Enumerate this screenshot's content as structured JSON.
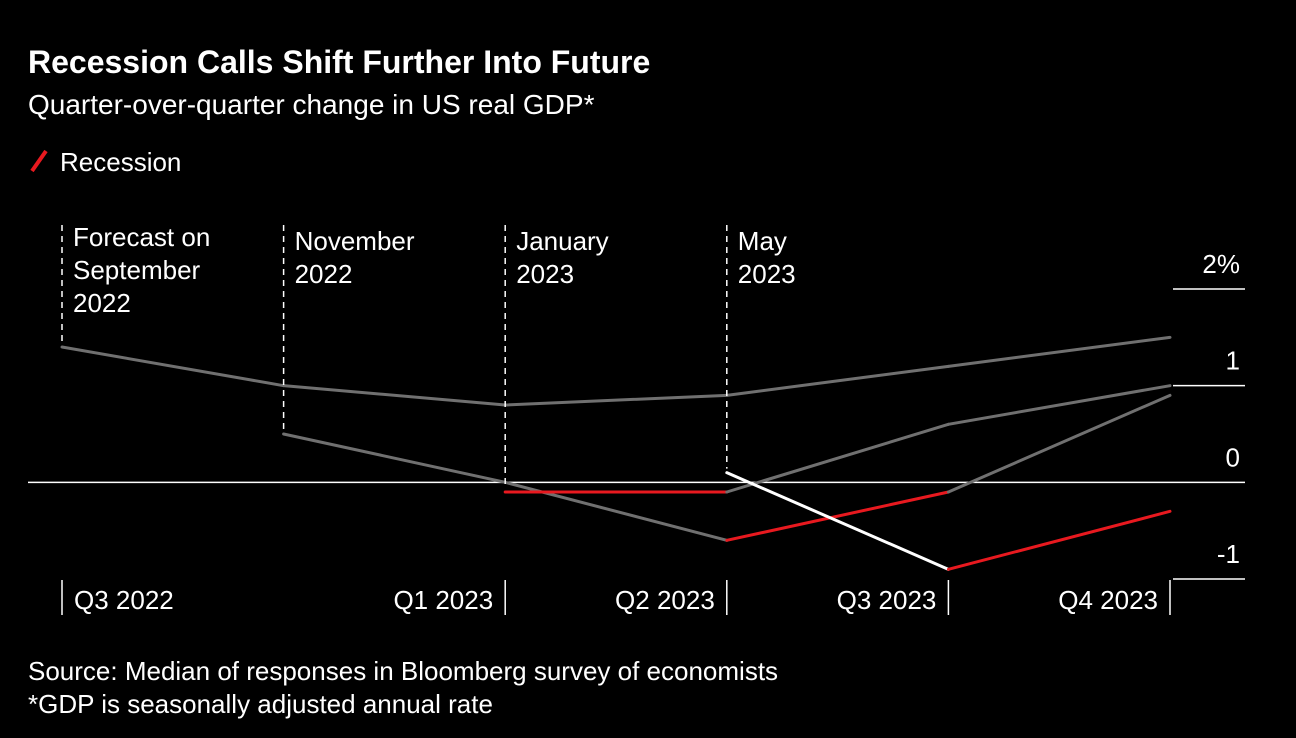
{
  "chart_data": {
    "type": "line",
    "title": "Recession Calls Shift Further Into Future",
    "subtitle": "Quarter-over-quarter change in US real GDP*",
    "legend": {
      "label": "Recession",
      "color": "#e8191f"
    },
    "categories": [
      "Q3 2022",
      null,
      "Q1 2023",
      "Q2 2023",
      "Q3 2023",
      "Q4 2023"
    ],
    "series": [
      {
        "label_lines": [
          "Forecast on",
          "September",
          "2022"
        ],
        "color": "#707070",
        "values": [
          1.4,
          1.0,
          0.8,
          0.9,
          1.2,
          1.5
        ]
      },
      {
        "label_lines": [
          "November",
          "2022"
        ],
        "color": "#707070",
        "values": [
          null,
          0.5,
          0.0,
          -0.6,
          -0.1,
          0.9
        ]
      },
      {
        "label_lines": [
          "January",
          "2023"
        ],
        "color": "#707070",
        "values": [
          null,
          null,
          -0.1,
          -0.1,
          0.6,
          1.0
        ]
      },
      {
        "label_lines": [
          "May",
          "2023"
        ],
        "color": "#ffffff",
        "values": [
          null,
          null,
          null,
          0.1,
          -0.9,
          -0.3
        ]
      }
    ],
    "ylim": [
      -1,
      2
    ],
    "yticks": [
      -1,
      0,
      1,
      {
        "value": 2,
        "label": "2%"
      }
    ],
    "source": "Source: Median of responses in Bloomberg survey of economists",
    "note": "*GDP is seasonally adjusted annual rate"
  }
}
